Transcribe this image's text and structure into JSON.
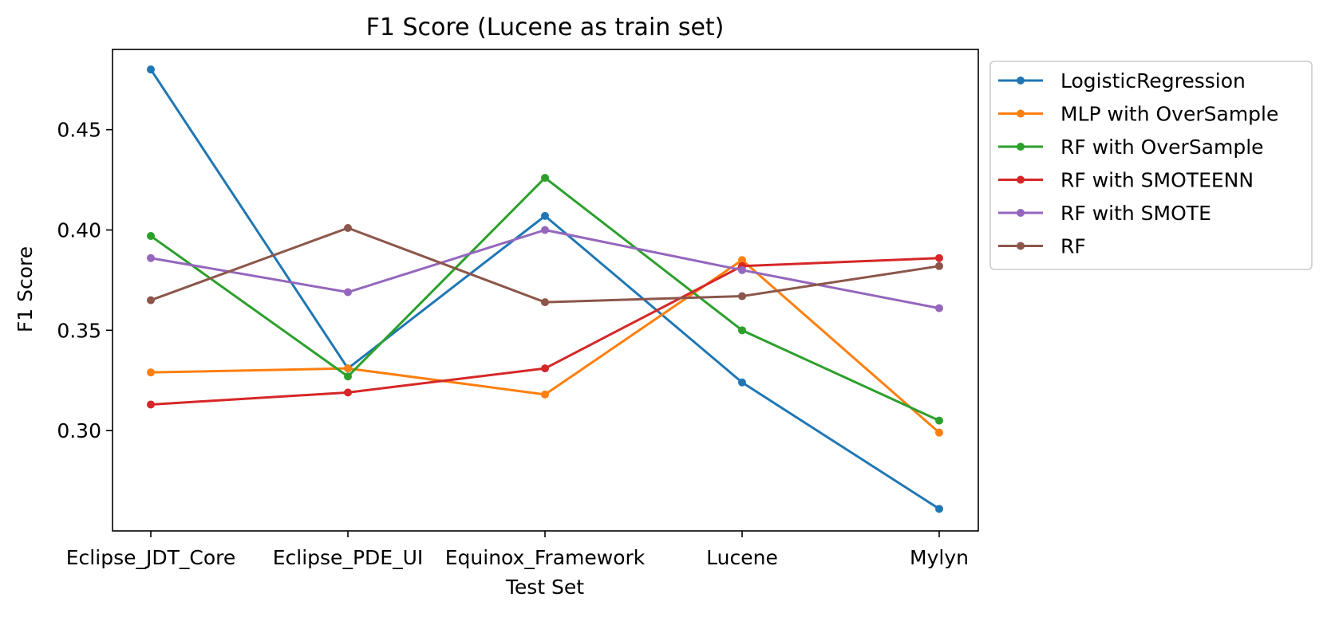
{
  "chart_data": {
    "type": "line",
    "title": "F1 Score (Lucene as train set)",
    "xlabel": "Test Set",
    "ylabel": "F1 Score",
    "categories": [
      "Eclipse_JDT_Core",
      "Eclipse_PDE_UI",
      "Equinox_Framework",
      "Lucene",
      "Mylyn"
    ],
    "ylim": [
      0.25,
      0.49
    ],
    "yticks": [
      "0.30",
      "0.35",
      "0.40",
      "0.45"
    ],
    "legend_position": "outside-upper-right",
    "grid": false,
    "series": [
      {
        "name": "LogisticRegression",
        "color": "#1f77b4",
        "values": [
          0.48,
          0.331,
          0.407,
          0.324,
          0.261
        ]
      },
      {
        "name": "MLP with OverSample",
        "color": "#ff7f0e",
        "values": [
          0.329,
          0.331,
          0.318,
          0.385,
          0.299
        ]
      },
      {
        "name": "RF with OverSample",
        "color": "#2ca02c",
        "values": [
          0.397,
          0.327,
          0.426,
          0.35,
          0.305
        ]
      },
      {
        "name": "RF with SMOTEENN",
        "color": "#d62728",
        "values": [
          0.313,
          0.319,
          0.331,
          0.382,
          0.386
        ]
      },
      {
        "name": "RF with SMOTE",
        "color": "#9467bd",
        "values": [
          0.386,
          0.369,
          0.4,
          0.38,
          0.361
        ]
      },
      {
        "name": "RF",
        "color": "#8c564b",
        "values": [
          0.365,
          0.401,
          0.364,
          0.367,
          0.382
        ]
      }
    ]
  }
}
